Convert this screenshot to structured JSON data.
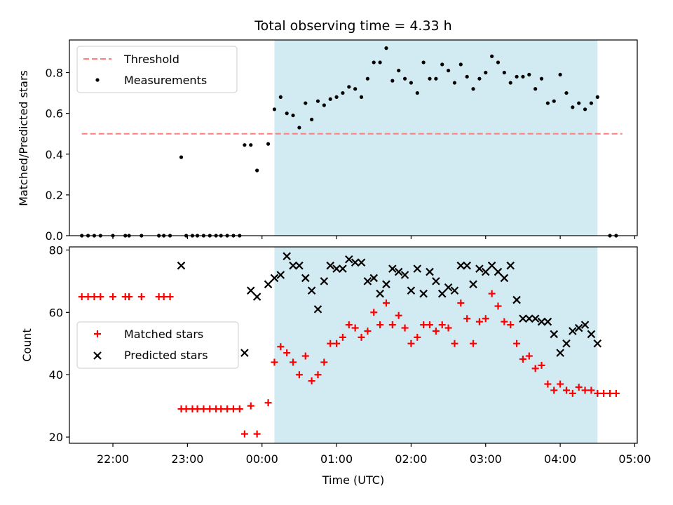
{
  "title": "Total observing time = 4.33 h",
  "chart_data": [
    {
      "type": "scatter",
      "ylabel": "Matched/Predicted stars",
      "xlim": [
        "21:25",
        "05:02"
      ],
      "ylim": [
        0,
        0.96
      ],
      "yticks": [
        "0.0",
        "0.2",
        "0.4",
        "0.6",
        "0.8"
      ],
      "shaded_window": {
        "start": "00:10",
        "end": "04:30",
        "color": "#add8e6"
      },
      "threshold": {
        "name": "Threshold",
        "value": 0.5,
        "x_start": "21:35",
        "x_end": "04:50",
        "color": "#ff7f7f"
      },
      "legend": {
        "placement": "upper left",
        "entries": [
          "Threshold",
          "Measurements"
        ]
      },
      "series": [
        {
          "name": "Measurements",
          "color": "#000000",
          "points": [
            [
              "21:35",
              0
            ],
            [
              "21:40",
              0
            ],
            [
              "21:45",
              0
            ],
            [
              "21:50",
              0
            ],
            [
              "22:00",
              0
            ],
            [
              "22:10",
              0
            ],
            [
              "22:13",
              0
            ],
            [
              "22:23",
              0
            ],
            [
              "22:37",
              0
            ],
            [
              "22:41",
              0
            ],
            [
              "22:46",
              0
            ],
            [
              "22:55",
              0.385
            ],
            [
              "22:59",
              0
            ],
            [
              "23:04",
              0
            ],
            [
              "23:08",
              0
            ],
            [
              "23:13",
              0
            ],
            [
              "23:18",
              0
            ],
            [
              "23:23",
              0
            ],
            [
              "23:27",
              0
            ],
            [
              "23:32",
              0
            ],
            [
              "23:37",
              0
            ],
            [
              "23:42",
              0
            ],
            [
              "23:46",
              0.445
            ],
            [
              "23:51",
              0.445
            ],
            [
              "23:56",
              0.32
            ],
            [
              "00:05",
              0.45
            ],
            [
              "00:10",
              0.62
            ],
            [
              "00:15",
              0.68
            ],
            [
              "00:20",
              0.6
            ],
            [
              "00:25",
              0.59
            ],
            [
              "00:30",
              0.53
            ],
            [
              "00:35",
              0.65
            ],
            [
              "00:40",
              0.57
            ],
            [
              "00:45",
              0.66
            ],
            [
              "00:50",
              0.64
            ],
            [
              "00:55",
              0.67
            ],
            [
              "01:00",
              0.68
            ],
            [
              "01:05",
              0.7
            ],
            [
              "01:10",
              0.73
            ],
            [
              "01:15",
              0.72
            ],
            [
              "01:20",
              0.68
            ],
            [
              "01:25",
              0.77
            ],
            [
              "01:30",
              0.85
            ],
            [
              "01:35",
              0.85
            ],
            [
              "01:40",
              0.92
            ],
            [
              "01:45",
              0.76
            ],
            [
              "01:50",
              0.81
            ],
            [
              "01:55",
              0.77
            ],
            [
              "02:00",
              0.75
            ],
            [
              "02:05",
              0.7
            ],
            [
              "02:10",
              0.85
            ],
            [
              "02:15",
              0.77
            ],
            [
              "02:20",
              0.77
            ],
            [
              "02:25",
              0.84
            ],
            [
              "02:30",
              0.81
            ],
            [
              "02:35",
              0.75
            ],
            [
              "02:40",
              0.84
            ],
            [
              "02:45",
              0.78
            ],
            [
              "02:50",
              0.72
            ],
            [
              "02:55",
              0.77
            ],
            [
              "03:00",
              0.8
            ],
            [
              "03:05",
              0.88
            ],
            [
              "03:10",
              0.85
            ],
            [
              "03:15",
              0.8
            ],
            [
              "03:20",
              0.75
            ],
            [
              "03:25",
              0.78
            ],
            [
              "03:30",
              0.78
            ],
            [
              "03:35",
              0.79
            ],
            [
              "03:40",
              0.72
            ],
            [
              "03:45",
              0.77
            ],
            [
              "03:50",
              0.65
            ],
            [
              "03:55",
              0.66
            ],
            [
              "04:00",
              0.79
            ],
            [
              "04:05",
              0.7
            ],
            [
              "04:10",
              0.63
            ],
            [
              "04:15",
              0.65
            ],
            [
              "04:20",
              0.62
            ],
            [
              "04:25",
              0.65
            ],
            [
              "04:30",
              0.68
            ],
            [
              "04:40",
              0
            ],
            [
              "04:45",
              0
            ]
          ]
        }
      ]
    },
    {
      "type": "scatter",
      "xlabel": "Time (UTC)",
      "ylabel": "Count",
      "xlim": [
        "21:25",
        "05:02"
      ],
      "ylim": [
        18,
        81
      ],
      "xticks": [
        "22:00",
        "23:00",
        "00:00",
        "01:00",
        "02:00",
        "03:00",
        "04:00",
        "05:00"
      ],
      "yticks": [
        "20",
        "40",
        "60",
        "80"
      ],
      "shaded_window": {
        "start": "00:10",
        "end": "04:30",
        "color": "#add8e6"
      },
      "legend": {
        "placement": "center left",
        "entries": [
          "Matched stars",
          "Predicted stars"
        ]
      },
      "series": [
        {
          "name": "Matched stars",
          "marker": "plus",
          "color": "#ff0000",
          "points": [
            [
              "21:35",
              65
            ],
            [
              "21:40",
              65
            ],
            [
              "21:45",
              65
            ],
            [
              "21:50",
              65
            ],
            [
              "22:00",
              65
            ],
            [
              "22:10",
              65
            ],
            [
              "22:13",
              65
            ],
            [
              "22:23",
              65
            ],
            [
              "22:37",
              65
            ],
            [
              "22:41",
              65
            ],
            [
              "22:46",
              65
            ],
            [
              "22:55",
              29
            ],
            [
              "22:59",
              29
            ],
            [
              "23:04",
              29
            ],
            [
              "23:08",
              29
            ],
            [
              "23:13",
              29
            ],
            [
              "23:18",
              29
            ],
            [
              "23:23",
              29
            ],
            [
              "23:27",
              29
            ],
            [
              "23:32",
              29
            ],
            [
              "23:37",
              29
            ],
            [
              "23:42",
              29
            ],
            [
              "23:46",
              21
            ],
            [
              "23:51",
              30
            ],
            [
              "23:56",
              21
            ],
            [
              "00:05",
              31
            ],
            [
              "00:10",
              44
            ],
            [
              "00:15",
              49
            ],
            [
              "00:20",
              47
            ],
            [
              "00:25",
              44
            ],
            [
              "00:30",
              40
            ],
            [
              "00:35",
              46
            ],
            [
              "00:40",
              38
            ],
            [
              "00:45",
              40
            ],
            [
              "00:50",
              44
            ],
            [
              "00:55",
              50
            ],
            [
              "01:00",
              50
            ],
            [
              "01:05",
              52
            ],
            [
              "01:10",
              56
            ],
            [
              "01:15",
              55
            ],
            [
              "01:20",
              52
            ],
            [
              "01:25",
              54
            ],
            [
              "01:30",
              60
            ],
            [
              "01:35",
              56
            ],
            [
              "01:40",
              63
            ],
            [
              "01:45",
              56
            ],
            [
              "01:50",
              59
            ],
            [
              "01:55",
              55
            ],
            [
              "02:00",
              50
            ],
            [
              "02:05",
              52
            ],
            [
              "02:10",
              56
            ],
            [
              "02:15",
              56
            ],
            [
              "02:20",
              54
            ],
            [
              "02:25",
              56
            ],
            [
              "02:30",
              55
            ],
            [
              "02:35",
              50
            ],
            [
              "02:40",
              63
            ],
            [
              "02:45",
              58
            ],
            [
              "02:50",
              50
            ],
            [
              "02:55",
              57
            ],
            [
              "03:00",
              58
            ],
            [
              "03:05",
              66
            ],
            [
              "03:10",
              62
            ],
            [
              "03:15",
              57
            ],
            [
              "03:20",
              56
            ],
            [
              "03:25",
              50
            ],
            [
              "03:30",
              45
            ],
            [
              "03:35",
              46
            ],
            [
              "03:40",
              42
            ],
            [
              "03:45",
              43
            ],
            [
              "03:50",
              37
            ],
            [
              "03:55",
              35
            ],
            [
              "04:00",
              37
            ],
            [
              "04:05",
              35
            ],
            [
              "04:10",
              34
            ],
            [
              "04:15",
              36
            ],
            [
              "04:20",
              35
            ],
            [
              "04:25",
              35
            ],
            [
              "04:30",
              34
            ],
            [
              "04:35",
              34
            ],
            [
              "04:40",
              34
            ],
            [
              "04:45",
              34
            ]
          ]
        },
        {
          "name": "Predicted stars",
          "marker": "x",
          "color": "#000000",
          "points": [
            [
              "22:55",
              75
            ],
            [
              "23:46",
              47
            ],
            [
              "23:51",
              67
            ],
            [
              "23:56",
              65
            ],
            [
              "00:05",
              69
            ],
            [
              "00:10",
              71
            ],
            [
              "00:15",
              72
            ],
            [
              "00:20",
              78
            ],
            [
              "00:25",
              75
            ],
            [
              "00:30",
              75
            ],
            [
              "00:35",
              71
            ],
            [
              "00:40",
              67
            ],
            [
              "00:45",
              61
            ],
            [
              "00:50",
              70
            ],
            [
              "00:55",
              75
            ],
            [
              "01:00",
              74
            ],
            [
              "01:05",
              74
            ],
            [
              "01:10",
              77
            ],
            [
              "01:15",
              76
            ],
            [
              "01:20",
              76
            ],
            [
              "01:25",
              70
            ],
            [
              "01:30",
              71
            ],
            [
              "01:35",
              66
            ],
            [
              "01:40",
              69
            ],
            [
              "01:45",
              74
            ],
            [
              "01:50",
              73
            ],
            [
              "01:55",
              72
            ],
            [
              "02:00",
              67
            ],
            [
              "02:05",
              74
            ],
            [
              "02:10",
              66
            ],
            [
              "02:15",
              73
            ],
            [
              "02:20",
              70
            ],
            [
              "02:25",
              66
            ],
            [
              "02:30",
              68
            ],
            [
              "02:35",
              67
            ],
            [
              "02:40",
              75
            ],
            [
              "02:45",
              75
            ],
            [
              "02:50",
              69
            ],
            [
              "02:55",
              74
            ],
            [
              "03:00",
              73
            ],
            [
              "03:05",
              75
            ],
            [
              "03:10",
              73
            ],
            [
              "03:15",
              71
            ],
            [
              "03:20",
              75
            ],
            [
              "03:25",
              64
            ],
            [
              "03:30",
              58
            ],
            [
              "03:35",
              58
            ],
            [
              "03:40",
              58
            ],
            [
              "03:45",
              57
            ],
            [
              "03:50",
              57
            ],
            [
              "03:55",
              53
            ],
            [
              "04:00",
              47
            ],
            [
              "04:05",
              50
            ],
            [
              "04:10",
              54
            ],
            [
              "04:15",
              55
            ],
            [
              "04:20",
              56
            ],
            [
              "04:25",
              53
            ],
            [
              "04:30",
              50
            ]
          ]
        }
      ]
    }
  ]
}
